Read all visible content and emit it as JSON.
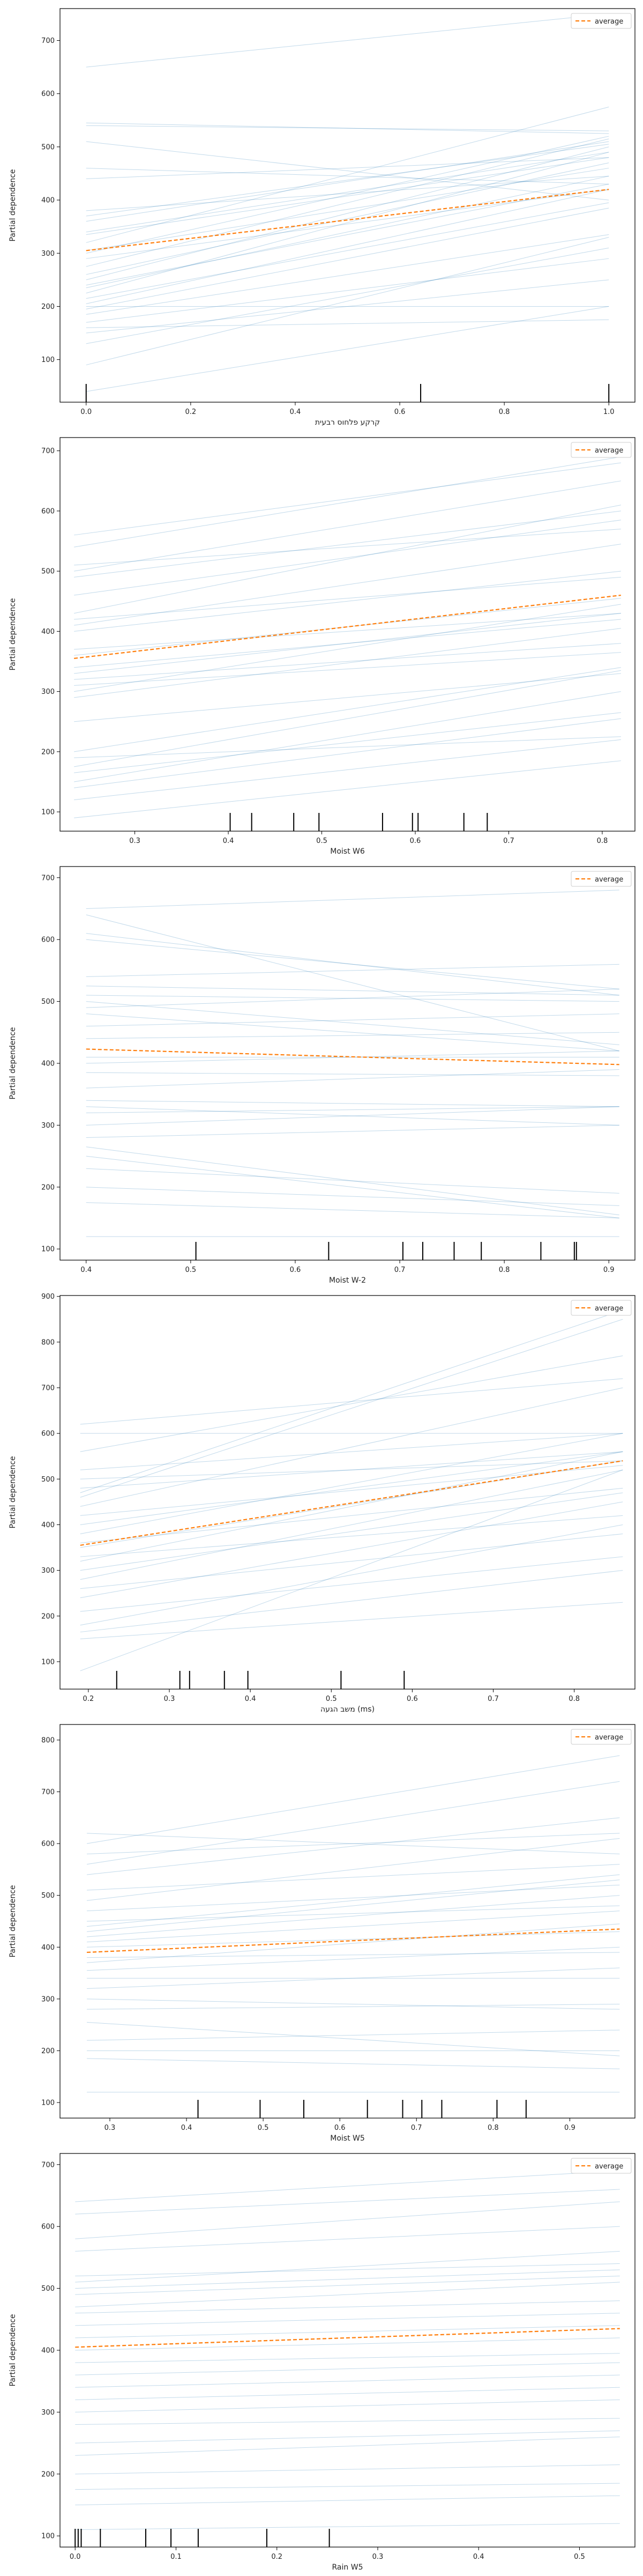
{
  "legend_label": "average",
  "y_axis_label": "Partial dependence",
  "colors": {
    "ice_line": "#1f77b4",
    "average_line": "#ff7f0e",
    "frame": "#000000",
    "rug": "#000000"
  },
  "chart_data": [
    {
      "type": "line",
      "xlabel": "קרקע פלחוס רבעית",
      "ylabel": "Partial dependence",
      "xlim": [
        -0.05,
        1.05
      ],
      "ylim": [
        20,
        760
      ],
      "x_ticks": [
        0.0,
        0.2,
        0.4,
        0.6,
        0.8,
        1.0
      ],
      "x_tick_labels": [
        "0.0",
        "0.2",
        "0.4",
        "0.6",
        "0.8",
        "1.0"
      ],
      "y_ticks": [
        100,
        200,
        300,
        400,
        500,
        600,
        700
      ],
      "y_tick_labels": [
        "100",
        "200",
        "300",
        "400",
        "500",
        "600",
        "700"
      ],
      "legend": "top-right",
      "grid": false,
      "rug": [
        0.0,
        0.64,
        1.0
      ],
      "average": {
        "name": "average",
        "x": [
          0.0,
          1.0
        ],
        "y": [
          305,
          420
        ]
      },
      "ice_lines": [
        [
          40,
          200
        ],
        [
          90,
          330
        ],
        [
          130,
          310
        ],
        [
          150,
          250
        ],
        [
          160,
          175
        ],
        [
          170,
          290
        ],
        [
          185,
          335
        ],
        [
          195,
          385
        ],
        [
          200,
          200
        ],
        [
          205,
          420
        ],
        [
          215,
          395
        ],
        [
          225,
          490
        ],
        [
          235,
          445
        ],
        [
          240,
          430
        ],
        [
          250,
          500
        ],
        [
          260,
          470
        ],
        [
          275,
          515
        ],
        [
          290,
          420
        ],
        [
          300,
          520
        ],
        [
          305,
          460
        ],
        [
          320,
          575
        ],
        [
          335,
          480
        ],
        [
          340,
          490
        ],
        [
          360,
          510
        ],
        [
          370,
          505
        ],
        [
          380,
          445
        ],
        [
          440,
          480
        ],
        [
          460,
          430
        ],
        [
          510,
          400
        ],
        [
          540,
          530
        ],
        [
          545,
          525
        ],
        [
          650,
          750
        ]
      ]
    },
    {
      "type": "line",
      "xlabel": "Moist W6",
      "ylabel": "Partial dependence",
      "xlim": [
        0.22,
        0.835
      ],
      "ylim": [
        68,
        722
      ],
      "x_ticks": [
        0.3,
        0.4,
        0.5,
        0.6,
        0.7,
        0.8
      ],
      "x_tick_labels": [
        "0.3",
        "0.4",
        "0.5",
        "0.6",
        "0.7",
        "0.8"
      ],
      "y_ticks": [
        100,
        200,
        300,
        400,
        500,
        600,
        700
      ],
      "y_tick_labels": [
        "100",
        "200",
        "300",
        "400",
        "500",
        "600",
        "700"
      ],
      "legend": "top-right",
      "grid": false,
      "rug": [
        0.402,
        0.425,
        0.47,
        0.497,
        0.565,
        0.597,
        0.603,
        0.652,
        0.677
      ],
      "average": {
        "name": "average",
        "x": [
          0.235,
          0.82
        ],
        "y": [
          355,
          460
        ]
      },
      "ice_lines": [
        [
          90,
          185
        ],
        [
          120,
          220
        ],
        [
          140,
          255
        ],
        [
          150,
          300
        ],
        [
          165,
          265
        ],
        [
          175,
          335
        ],
        [
          190,
          225
        ],
        [
          200,
          340
        ],
        [
          250,
          330
        ],
        [
          290,
          405
        ],
        [
          300,
          445
        ],
        [
          310,
          365
        ],
        [
          320,
          380
        ],
        [
          330,
          430
        ],
        [
          340,
          420
        ],
        [
          360,
          455
        ],
        [
          370,
          430
        ],
        [
          400,
          500
        ],
        [
          410,
          545
        ],
        [
          420,
          490
        ],
        [
          430,
          610
        ],
        [
          460,
          585
        ],
        [
          490,
          600
        ],
        [
          500,
          650
        ],
        [
          510,
          570
        ],
        [
          540,
          690
        ],
        [
          560,
          680
        ]
      ]
    },
    {
      "type": "line",
      "xlabel": "Moist W-2",
      "ylabel": "Partial dependence",
      "xlim": [
        0.375,
        0.925
      ],
      "ylim": [
        82,
        718
      ],
      "x_ticks": [
        0.4,
        0.5,
        0.6,
        0.7,
        0.8,
        0.9
      ],
      "x_tick_labels": [
        "0.4",
        "0.5",
        "0.6",
        "0.7",
        "0.8",
        "0.9"
      ],
      "y_ticks": [
        100,
        200,
        300,
        400,
        500,
        600,
        700
      ],
      "y_tick_labels": [
        "100",
        "200",
        "300",
        "400",
        "500",
        "600",
        "700"
      ],
      "legend": "top-right",
      "grid": false,
      "rug": [
        0.505,
        0.632,
        0.703,
        0.722,
        0.752,
        0.778,
        0.835,
        0.867,
        0.869
      ],
      "average": {
        "name": "average",
        "x": [
          0.4,
          0.91
        ],
        "y": [
          423,
          398
        ]
      },
      "ice_lines": [
        [
          120,
          120
        ],
        [
          175,
          150
        ],
        [
          200,
          170
        ],
        [
          230,
          190
        ],
        [
          250,
          150
        ],
        [
          265,
          155
        ],
        [
          280,
          300
        ],
        [
          300,
          330
        ],
        [
          320,
          330
        ],
        [
          330,
          300
        ],
        [
          340,
          330
        ],
        [
          360,
          390
        ],
        [
          385,
          380
        ],
        [
          400,
          420
        ],
        [
          410,
          410
        ],
        [
          440,
          450
        ],
        [
          460,
          480
        ],
        [
          480,
          420
        ],
        [
          490,
          520
        ],
        [
          500,
          430
        ],
        [
          510,
          500
        ],
        [
          525,
          510
        ],
        [
          540,
          560
        ],
        [
          600,
          520
        ],
        [
          610,
          510
        ],
        [
          640,
          420
        ],
        [
          650,
          680
        ]
      ]
    },
    {
      "type": "line",
      "xlabel": "משב הגעה (ms)",
      "ylabel": "Partial dependence",
      "xlim": [
        0.165,
        0.875
      ],
      "ylim": [
        40,
        902
      ],
      "x_ticks": [
        0.2,
        0.3,
        0.4,
        0.5,
        0.6,
        0.7,
        0.8
      ],
      "x_tick_labels": [
        "0.2",
        "0.3",
        "0.4",
        "0.5",
        "0.6",
        "0.7",
        "0.8"
      ],
      "y_ticks": [
        100,
        200,
        300,
        400,
        500,
        600,
        700,
        800,
        900
      ],
      "y_tick_labels": [
        "100",
        "200",
        "300",
        "400",
        "500",
        "600",
        "700",
        "800",
        "900"
      ],
      "legend": "top-right",
      "grid": false,
      "rug": [
        0.235,
        0.313,
        0.325,
        0.368,
        0.397,
        0.512,
        0.59
      ],
      "average": {
        "name": "average",
        "x": [
          0.19,
          0.86
        ],
        "y": [
          355,
          540
        ]
      },
      "ice_lines": [
        [
          80,
          520
        ],
        [
          150,
          230
        ],
        [
          165,
          300
        ],
        [
          180,
          400
        ],
        [
          210,
          330
        ],
        [
          240,
          450
        ],
        [
          260,
          380
        ],
        [
          280,
          520
        ],
        [
          300,
          470
        ],
        [
          320,
          560
        ],
        [
          330,
          420
        ],
        [
          350,
          540
        ],
        [
          360,
          480
        ],
        [
          380,
          600
        ],
        [
          400,
          560
        ],
        [
          420,
          530
        ],
        [
          440,
          700
        ],
        [
          460,
          850
        ],
        [
          470,
          870
        ],
        [
          480,
          560
        ],
        [
          500,
          540
        ],
        [
          520,
          600
        ],
        [
          560,
          770
        ],
        [
          600,
          600
        ],
        [
          620,
          720
        ]
      ]
    },
    {
      "type": "line",
      "xlabel": "Moist W5",
      "ylabel": "Partial dependence",
      "xlim": [
        0.235,
        0.985
      ],
      "ylim": [
        70,
        830
      ],
      "x_ticks": [
        0.3,
        0.4,
        0.5,
        0.6,
        0.7,
        0.8,
        0.9
      ],
      "x_tick_labels": [
        "0.3",
        "0.4",
        "0.5",
        "0.6",
        "0.7",
        "0.8",
        "0.9"
      ],
      "y_ticks": [
        100,
        200,
        300,
        400,
        500,
        600,
        700,
        800
      ],
      "y_tick_labels": [
        "100",
        "200",
        "300",
        "400",
        "500",
        "600",
        "700",
        "800"
      ],
      "legend": "top-right",
      "grid": false,
      "rug": [
        0.415,
        0.496,
        0.553,
        0.636,
        0.682,
        0.707,
        0.733,
        0.805,
        0.843
      ],
      "average": {
        "name": "average",
        "x": [
          0.27,
          0.965
        ],
        "y": [
          390,
          435
        ]
      },
      "ice_lines": [
        [
          120,
          120
        ],
        [
          185,
          165
        ],
        [
          200,
          200
        ],
        [
          220,
          240
        ],
        [
          255,
          190
        ],
        [
          280,
          290
        ],
        [
          300,
          280
        ],
        [
          320,
          360
        ],
        [
          340,
          340
        ],
        [
          355,
          400
        ],
        [
          370,
          445
        ],
        [
          380,
          390
        ],
        [
          400,
          430
        ],
        [
          410,
          470
        ],
        [
          420,
          500
        ],
        [
          430,
          530
        ],
        [
          440,
          540
        ],
        [
          450,
          480
        ],
        [
          470,
          520
        ],
        [
          490,
          610
        ],
        [
          510,
          560
        ],
        [
          540,
          650
        ],
        [
          560,
          720
        ],
        [
          580,
          620
        ],
        [
          600,
          770
        ],
        [
          620,
          580
        ]
      ]
    },
    {
      "type": "line",
      "xlabel": "Rain W5",
      "ylabel": "Partial dependence",
      "xlim": [
        -0.015,
        0.555
      ],
      "ylim": [
        82,
        718
      ],
      "x_ticks": [
        0.0,
        0.1,
        0.2,
        0.3,
        0.4,
        0.5
      ],
      "x_tick_labels": [
        "0.0",
        "0.1",
        "0.2",
        "0.3",
        "0.4",
        "0.5"
      ],
      "y_ticks": [
        100,
        200,
        300,
        400,
        500,
        600,
        700
      ],
      "y_tick_labels": [
        "100",
        "200",
        "300",
        "400",
        "500",
        "600",
        "700"
      ],
      "legend": "top-right",
      "grid": false,
      "rug": [
        0.0,
        0.003,
        0.006,
        0.025,
        0.07,
        0.095,
        0.122,
        0.19,
        0.252
      ],
      "average": {
        "name": "average",
        "x": [
          0.0,
          0.54
        ],
        "y": [
          405,
          435
        ]
      },
      "ice_lines": [
        [
          110,
          120
        ],
        [
          150,
          165
        ],
        [
          175,
          185
        ],
        [
          200,
          215
        ],
        [
          230,
          260
        ],
        [
          250,
          270
        ],
        [
          280,
          290
        ],
        [
          300,
          320
        ],
        [
          320,
          340
        ],
        [
          340,
          360
        ],
        [
          360,
          380
        ],
        [
          380,
          395
        ],
        [
          400,
          420
        ],
        [
          420,
          440
        ],
        [
          440,
          460
        ],
        [
          460,
          480
        ],
        [
          470,
          510
        ],
        [
          490,
          520
        ],
        [
          500,
          530
        ],
        [
          510,
          560
        ],
        [
          520,
          540
        ],
        [
          560,
          600
        ],
        [
          580,
          640
        ],
        [
          620,
          660
        ],
        [
          640,
          690
        ]
      ]
    }
  ]
}
